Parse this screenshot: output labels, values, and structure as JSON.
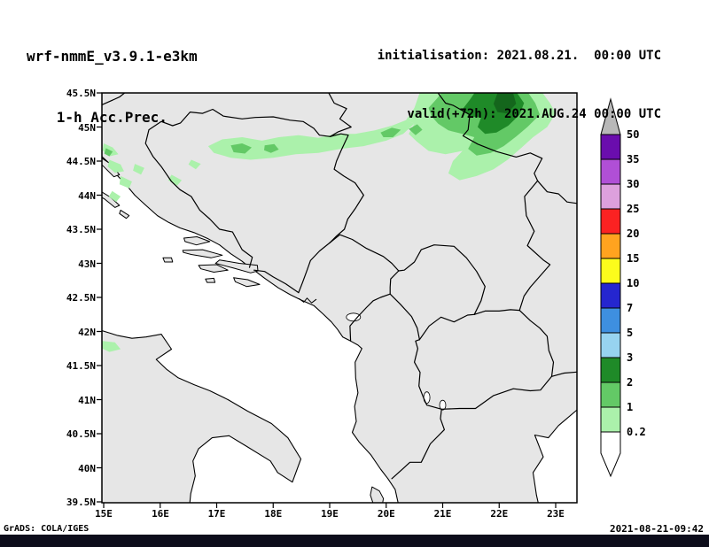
{
  "header": {
    "model": "wrf-nmmE_v3.9.1-e3km",
    "product": "1-h Acc.Prec.",
    "init": "initialisation: 2021.08.21.  00:00 UTC",
    "valid": "valid(+72h): 2021.AUG.24 00:00 UTC"
  },
  "map": {
    "lat_ticks": [
      "45.5N",
      "45N",
      "44.5N",
      "44N",
      "43.5N",
      "43N",
      "42.5N",
      "42N",
      "41.5N",
      "41N",
      "40.5N",
      "40N",
      "39.5N"
    ],
    "lon_ticks": [
      "15E",
      "16E",
      "17E",
      "18E",
      "19E",
      "20E",
      "21E",
      "22E",
      "23E"
    ],
    "land_color": "#e6e6e6",
    "sea_color": "#ffffff",
    "border_color": "#000000"
  },
  "colorbar": {
    "labels": [
      "50",
      "35",
      "30",
      "25",
      "20",
      "15",
      "10",
      "7",
      "5",
      "3",
      "2",
      "1",
      "0.2"
    ],
    "seg_colors": [
      "#b8b8b8",
      "#6a0dad",
      "#b04fd6",
      "#dda0dd",
      "#fb2222",
      "#ffa31f",
      "#fcfc1c",
      "#2526cf",
      "#3e8fe0",
      "#97d3f0",
      "#1f8a28",
      "#63c966",
      "#abf1ab",
      "#ffffff"
    ]
  },
  "precip": {
    "light_color": "#abf1ab",
    "medium_color": "#63c966",
    "dark_color": "#1f8a28",
    "darkest_color": "#14661c"
  },
  "footer": {
    "credit": "GrADS: COLA/IGES",
    "timestamp": "2021-08-21-09:42"
  }
}
